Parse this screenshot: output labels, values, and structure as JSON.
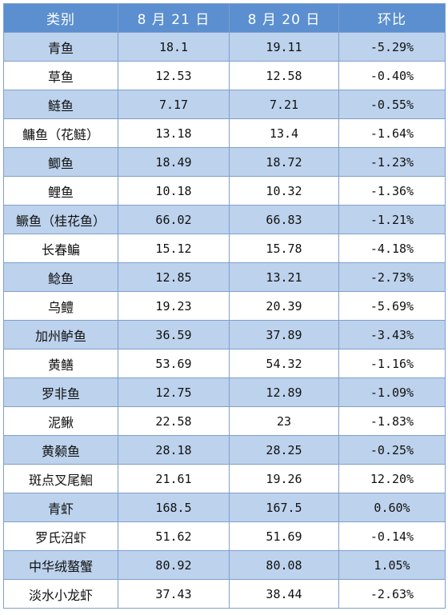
{
  "table": {
    "headers": [
      "类别",
      "8 月 21 日",
      "8 月 20 日",
      "环比"
    ],
    "rows": [
      [
        "青鱼",
        "18.1",
        "19.11",
        "-5.29%"
      ],
      [
        "草鱼",
        "12.53",
        "12.58",
        "-0.40%"
      ],
      [
        "鲢鱼",
        "7.17",
        "7.21",
        "-0.55%"
      ],
      [
        "鳙鱼（花鲢）",
        "13.18",
        "13.4",
        "-1.64%"
      ],
      [
        "鲫鱼",
        "18.49",
        "18.72",
        "-1.23%"
      ],
      [
        "鲤鱼",
        "10.18",
        "10.32",
        "-1.36%"
      ],
      [
        "鳜鱼（桂花鱼）",
        "66.02",
        "66.83",
        "-1.21%"
      ],
      [
        "长春鳊",
        "15.12",
        "15.78",
        "-4.18%"
      ],
      [
        "鲶鱼",
        "12.85",
        "13.21",
        "-2.73%"
      ],
      [
        "乌鳢",
        "19.23",
        "20.39",
        "-5.69%"
      ],
      [
        "加州鲈鱼",
        "36.59",
        "37.89",
        "-3.43%"
      ],
      [
        "黄鳝",
        "53.69",
        "54.32",
        "-1.16%"
      ],
      [
        "罗非鱼",
        "12.75",
        "12.89",
        "-1.09%"
      ],
      [
        "泥鳅",
        "22.58",
        "23",
        "-1.83%"
      ],
      [
        "黄颡鱼",
        "28.18",
        "28.25",
        "-0.25%"
      ],
      [
        "斑点叉尾鮰",
        "21.61",
        "19.26",
        "12.20%"
      ],
      [
        "青虾",
        "168.5",
        "167.5",
        "0.60%"
      ],
      [
        "罗氏沼虾",
        "51.62",
        "51.69",
        "-0.14%"
      ],
      [
        "中华绒螯蟹",
        "80.92",
        "80.08",
        "1.05%"
      ],
      [
        "淡水小龙虾",
        "37.43",
        "38.44",
        "-2.63%"
      ]
    ]
  },
  "colors": {
    "header_bg": "#5b8fd0",
    "alt_row_bg": "#bdd2ec",
    "plain_row_bg": "#ffffff",
    "border": "#7f9fcc"
  }
}
